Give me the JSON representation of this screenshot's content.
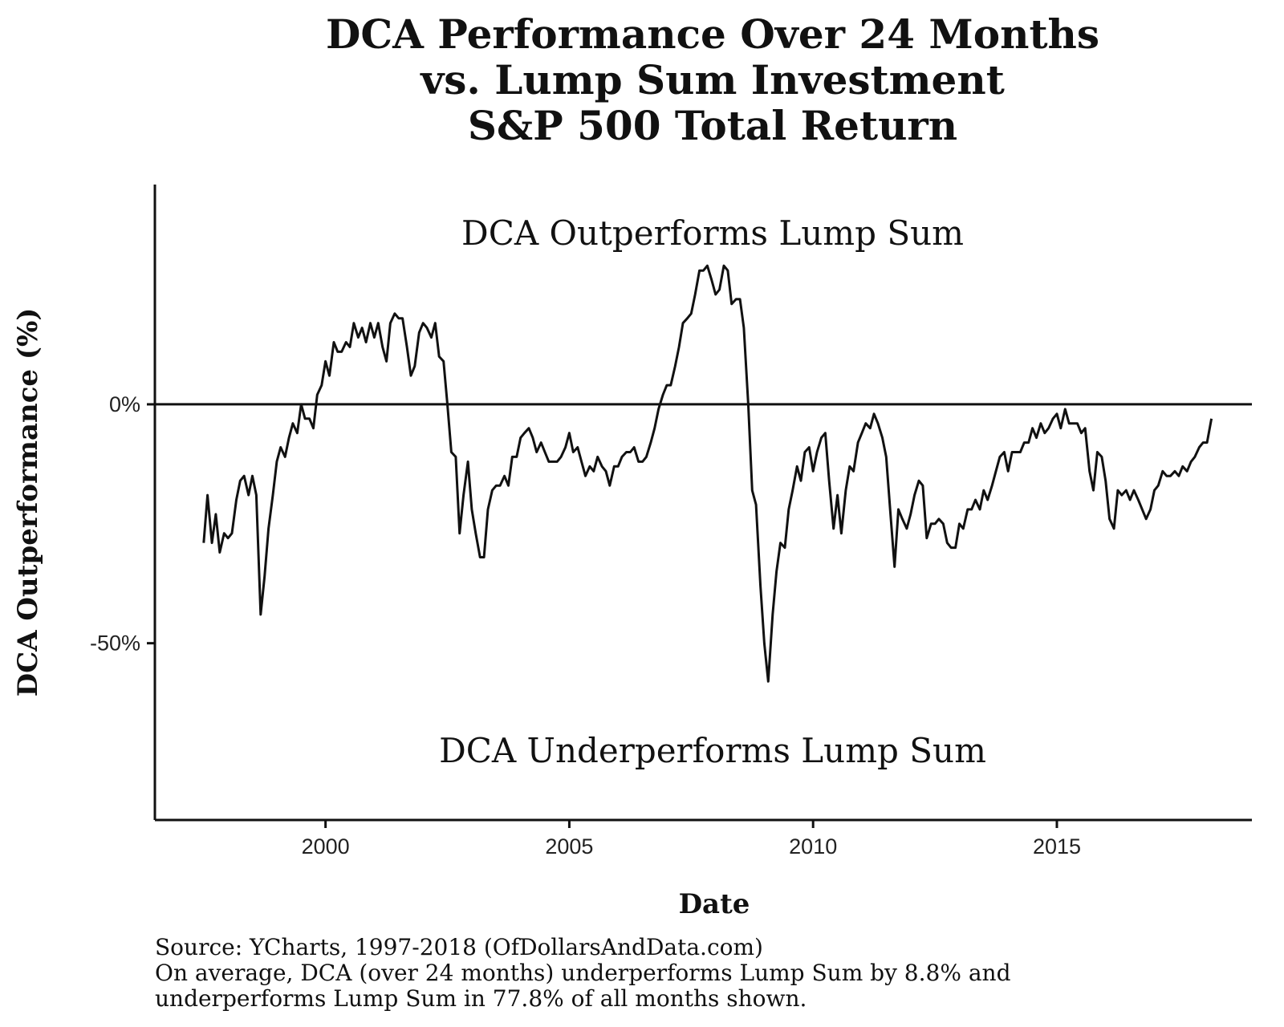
{
  "chart_data": {
    "type": "line",
    "title": [
      "DCA Performance Over 24 Months",
      "vs. Lump Sum Investment",
      "S&P 500 Total Return"
    ],
    "xlabel": "Date",
    "ylabel": "DCA Outperformance (%)",
    "xlim": [
      1996.5,
      2019.0
    ],
    "ylim": [
      -87,
      46
    ],
    "x_ticks": [
      2000,
      2005,
      2010,
      2015
    ],
    "x_tick_labels": [
      "2000",
      "2005",
      "2010",
      "2015"
    ],
    "y_ticks": [
      0,
      -50
    ],
    "y_tick_labels": [
      "0%",
      "-50%"
    ],
    "reference_line_y": 0,
    "grid": false,
    "annotations": {
      "upper": "DCA Outperforms Lump Sum",
      "lower": "DCA Underperforms Lump Sum"
    },
    "series": [
      {
        "color": "#111111",
        "points": [
          [
            1997.5,
            -29
          ],
          [
            1997.58,
            -19
          ],
          [
            1997.67,
            -29
          ],
          [
            1997.75,
            -23
          ],
          [
            1997.83,
            -31
          ],
          [
            1997.92,
            -27
          ],
          [
            1998.0,
            -28
          ],
          [
            1998.08,
            -27
          ],
          [
            1998.17,
            -20
          ],
          [
            1998.25,
            -16
          ],
          [
            1998.33,
            -15
          ],
          [
            1998.42,
            -19
          ],
          [
            1998.5,
            -15
          ],
          [
            1998.58,
            -19
          ],
          [
            1998.67,
            -44
          ],
          [
            1998.75,
            -36
          ],
          [
            1998.83,
            -26
          ],
          [
            1998.92,
            -19
          ],
          [
            1999.0,
            -12
          ],
          [
            1999.08,
            -9
          ],
          [
            1999.17,
            -11
          ],
          [
            1999.25,
            -7
          ],
          [
            1999.33,
            -4
          ],
          [
            1999.42,
            -6
          ],
          [
            1999.5,
            0
          ],
          [
            1999.58,
            -3
          ],
          [
            1999.67,
            -3
          ],
          [
            1999.75,
            -5
          ],
          [
            1999.83,
            2
          ],
          [
            1999.92,
            4
          ],
          [
            2000.0,
            9
          ],
          [
            2000.08,
            6
          ],
          [
            2000.17,
            13
          ],
          [
            2000.25,
            11
          ],
          [
            2000.33,
            11
          ],
          [
            2000.42,
            13
          ],
          [
            2000.5,
            12
          ],
          [
            2000.58,
            17
          ],
          [
            2000.67,
            14
          ],
          [
            2000.75,
            16
          ],
          [
            2000.83,
            13
          ],
          [
            2000.92,
            17
          ],
          [
            2001.0,
            14
          ],
          [
            2001.08,
            17
          ],
          [
            2001.17,
            12
          ],
          [
            2001.25,
            9
          ],
          [
            2001.33,
            17
          ],
          [
            2001.42,
            19
          ],
          [
            2001.5,
            18
          ],
          [
            2001.58,
            18
          ],
          [
            2001.67,
            12
          ],
          [
            2001.75,
            6
          ],
          [
            2001.83,
            8
          ],
          [
            2001.92,
            15
          ],
          [
            2002.0,
            17
          ],
          [
            2002.08,
            16
          ],
          [
            2002.17,
            14
          ],
          [
            2002.25,
            17
          ],
          [
            2002.33,
            10
          ],
          [
            2002.42,
            9
          ],
          [
            2002.5,
            0
          ],
          [
            2002.58,
            -10
          ],
          [
            2002.67,
            -11
          ],
          [
            2002.75,
            -27
          ],
          [
            2002.83,
            -19
          ],
          [
            2002.92,
            -12
          ],
          [
            2003.0,
            -22
          ],
          [
            2003.08,
            -27
          ],
          [
            2003.17,
            -32
          ],
          [
            2003.25,
            -32
          ],
          [
            2003.33,
            -22
          ],
          [
            2003.42,
            -18
          ],
          [
            2003.5,
            -17
          ],
          [
            2003.58,
            -17
          ],
          [
            2003.67,
            -15
          ],
          [
            2003.75,
            -17
          ],
          [
            2003.83,
            -11
          ],
          [
            2003.92,
            -11
          ],
          [
            2004.0,
            -7
          ],
          [
            2004.08,
            -6
          ],
          [
            2004.17,
            -5
          ],
          [
            2004.25,
            -7
          ],
          [
            2004.33,
            -10
          ],
          [
            2004.42,
            -8
          ],
          [
            2004.5,
            -10
          ],
          [
            2004.58,
            -12
          ],
          [
            2004.67,
            -12
          ],
          [
            2004.75,
            -12
          ],
          [
            2004.83,
            -11
          ],
          [
            2004.92,
            -9
          ],
          [
            2005.0,
            -6
          ],
          [
            2005.08,
            -10
          ],
          [
            2005.17,
            -9
          ],
          [
            2005.25,
            -12
          ],
          [
            2005.33,
            -15
          ],
          [
            2005.42,
            -13
          ],
          [
            2005.5,
            -14
          ],
          [
            2005.58,
            -11
          ],
          [
            2005.67,
            -13
          ],
          [
            2005.75,
            -14
          ],
          [
            2005.83,
            -17
          ],
          [
            2005.92,
            -13
          ],
          [
            2006.0,
            -13
          ],
          [
            2006.08,
            -11
          ],
          [
            2006.17,
            -10
          ],
          [
            2006.25,
            -10
          ],
          [
            2006.33,
            -9
          ],
          [
            2006.42,
            -12
          ],
          [
            2006.5,
            -12
          ],
          [
            2006.58,
            -11
          ],
          [
            2006.67,
            -8
          ],
          [
            2006.75,
            -5
          ],
          [
            2006.83,
            -1
          ],
          [
            2006.92,
            2
          ],
          [
            2007.0,
            4
          ],
          [
            2007.08,
            4
          ],
          [
            2007.17,
            8
          ],
          [
            2007.25,
            12
          ],
          [
            2007.33,
            17
          ],
          [
            2007.42,
            18
          ],
          [
            2007.5,
            19
          ],
          [
            2007.58,
            23
          ],
          [
            2007.67,
            28
          ],
          [
            2007.75,
            28
          ],
          [
            2007.83,
            29
          ],
          [
            2007.92,
            26
          ],
          [
            2008.0,
            23
          ],
          [
            2008.08,
            24
          ],
          [
            2008.17,
            29
          ],
          [
            2008.25,
            28
          ],
          [
            2008.33,
            21
          ],
          [
            2008.42,
            22
          ],
          [
            2008.5,
            22
          ],
          [
            2008.58,
            16
          ],
          [
            2008.67,
            0
          ],
          [
            2008.75,
            -18
          ],
          [
            2008.83,
            -21
          ],
          [
            2008.92,
            -38
          ],
          [
            2009.0,
            -50
          ],
          [
            2009.08,
            -58
          ],
          [
            2009.17,
            -44
          ],
          [
            2009.25,
            -35
          ],
          [
            2009.33,
            -29
          ],
          [
            2009.42,
            -30
          ],
          [
            2009.5,
            -22
          ],
          [
            2009.58,
            -18
          ],
          [
            2009.67,
            -13
          ],
          [
            2009.75,
            -16
          ],
          [
            2009.83,
            -10
          ],
          [
            2009.92,
            -9
          ],
          [
            2010.0,
            -14
          ],
          [
            2010.08,
            -10
          ],
          [
            2010.17,
            -7
          ],
          [
            2010.25,
            -6
          ],
          [
            2010.33,
            -16
          ],
          [
            2010.42,
            -26
          ],
          [
            2010.5,
            -19
          ],
          [
            2010.58,
            -27
          ],
          [
            2010.67,
            -18
          ],
          [
            2010.75,
            -13
          ],
          [
            2010.83,
            -14
          ],
          [
            2010.92,
            -8
          ],
          [
            2011.0,
            -6
          ],
          [
            2011.08,
            -4
          ],
          [
            2011.17,
            -5
          ],
          [
            2011.25,
            -2
          ],
          [
            2011.33,
            -4
          ],
          [
            2011.42,
            -7
          ],
          [
            2011.5,
            -11
          ],
          [
            2011.58,
            -22
          ],
          [
            2011.67,
            -34
          ],
          [
            2011.75,
            -22
          ],
          [
            2011.83,
            -24
          ],
          [
            2011.92,
            -26
          ],
          [
            2012.0,
            -23
          ],
          [
            2012.08,
            -19
          ],
          [
            2012.17,
            -16
          ],
          [
            2012.25,
            -17
          ],
          [
            2012.33,
            -28
          ],
          [
            2012.42,
            -25
          ],
          [
            2012.5,
            -25
          ],
          [
            2012.58,
            -24
          ],
          [
            2012.67,
            -25
          ],
          [
            2012.75,
            -29
          ],
          [
            2012.83,
            -30
          ],
          [
            2012.92,
            -30
          ],
          [
            2013.0,
            -25
          ],
          [
            2013.08,
            -26
          ],
          [
            2013.17,
            -22
          ],
          [
            2013.25,
            -22
          ],
          [
            2013.33,
            -20
          ],
          [
            2013.42,
            -22
          ],
          [
            2013.5,
            -18
          ],
          [
            2013.58,
            -20
          ],
          [
            2013.67,
            -17
          ],
          [
            2013.75,
            -14
          ],
          [
            2013.83,
            -11
          ],
          [
            2013.92,
            -10
          ],
          [
            2014.0,
            -14
          ],
          [
            2014.08,
            -10
          ],
          [
            2014.17,
            -10
          ],
          [
            2014.25,
            -10
          ],
          [
            2014.33,
            -8
          ],
          [
            2014.42,
            -8
          ],
          [
            2014.5,
            -5
          ],
          [
            2014.58,
            -7
          ],
          [
            2014.67,
            -4
          ],
          [
            2014.75,
            -6
          ],
          [
            2014.83,
            -5
          ],
          [
            2014.92,
            -3
          ],
          [
            2015.0,
            -2
          ],
          [
            2015.08,
            -5
          ],
          [
            2015.17,
            -1
          ],
          [
            2015.25,
            -4
          ],
          [
            2015.33,
            -4
          ],
          [
            2015.42,
            -4
          ],
          [
            2015.5,
            -6
          ],
          [
            2015.58,
            -5
          ],
          [
            2015.67,
            -14
          ],
          [
            2015.75,
            -18
          ],
          [
            2015.83,
            -10
          ],
          [
            2015.92,
            -11
          ],
          [
            2016.0,
            -16
          ],
          [
            2016.08,
            -24
          ],
          [
            2016.17,
            -26
          ],
          [
            2016.25,
            -18
          ],
          [
            2016.33,
            -19
          ],
          [
            2016.42,
            -18
          ],
          [
            2016.5,
            -20
          ],
          [
            2016.58,
            -18
          ],
          [
            2016.67,
            -20
          ],
          [
            2016.75,
            -22
          ],
          [
            2016.83,
            -24
          ],
          [
            2016.92,
            -22
          ],
          [
            2017.0,
            -18
          ],
          [
            2017.08,
            -17
          ],
          [
            2017.17,
            -14
          ],
          [
            2017.25,
            -15
          ],
          [
            2017.33,
            -15
          ],
          [
            2017.42,
            -14
          ],
          [
            2017.5,
            -15
          ],
          [
            2017.58,
            -13
          ],
          [
            2017.67,
            -14
          ],
          [
            2017.75,
            -12
          ],
          [
            2017.83,
            -11
          ],
          [
            2017.92,
            -9
          ],
          [
            2018.0,
            -8
          ],
          [
            2018.08,
            -8
          ],
          [
            2018.17,
            -3
          ]
        ]
      }
    ]
  },
  "caption": {
    "source": "Source:  YCharts, 1997-2018 (OfDollarsAndData.com)",
    "note_line1": "On average, DCA (over 24 months) underperforms Lump Sum by 8.8% and",
    "note_line2": "underperforms Lump Sum in 77.8% of all months shown."
  }
}
